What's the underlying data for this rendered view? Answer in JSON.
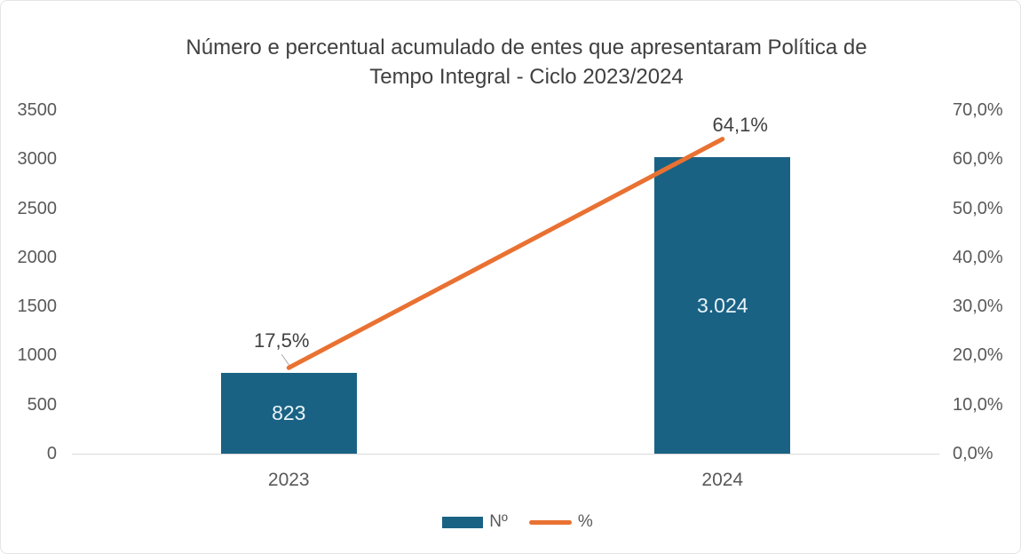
{
  "title": {
    "line1": "Número e percentual acumulado de entes que apresentaram Política de",
    "line2": "Tempo Integral - Ciclo 2023/2024"
  },
  "legend": {
    "bar_label": "Nº",
    "line_label": "%"
  },
  "chart_data": {
    "type": "combo_bar_line",
    "title": "Número e percentual acumulado de entes que apresentaram Política de Tempo Integral - Ciclo 2023/2024",
    "categories": [
      "2023",
      "2024"
    ],
    "series": [
      {
        "name": "Nº",
        "chart_type": "bar",
        "axis": "left",
        "values": [
          823,
          3024
        ],
        "data_labels": [
          "823",
          "3.024"
        ],
        "color": "#1A6284",
        "label_color": "#E9F4F9"
      },
      {
        "name": "%",
        "chart_type": "line",
        "axis": "right",
        "values": [
          17.5,
          64.1
        ],
        "data_labels": [
          "17,5%",
          "64,1%"
        ],
        "color": "#E97132",
        "label_color": "#404040"
      }
    ],
    "left_axis": {
      "min": 0,
      "max": 3500,
      "step": 500,
      "tick_labels": [
        "3500",
        "3000",
        "2500",
        "2000",
        "1500",
        "1000",
        "500",
        "0"
      ]
    },
    "right_axis": {
      "min": 0,
      "max": 70,
      "step": 10,
      "tick_labels": [
        "70,0%",
        "60,0%",
        "50,0%",
        "40,0%",
        "30,0%",
        "20,0%",
        "10,0%",
        "0,0%"
      ]
    },
    "grid": false,
    "legend_position": "bottom",
    "colors": {
      "axis_line": "#D9D9D9",
      "tick_text": "#595959",
      "title_text": "#404040",
      "leader_line": "#A6A6A6"
    }
  }
}
